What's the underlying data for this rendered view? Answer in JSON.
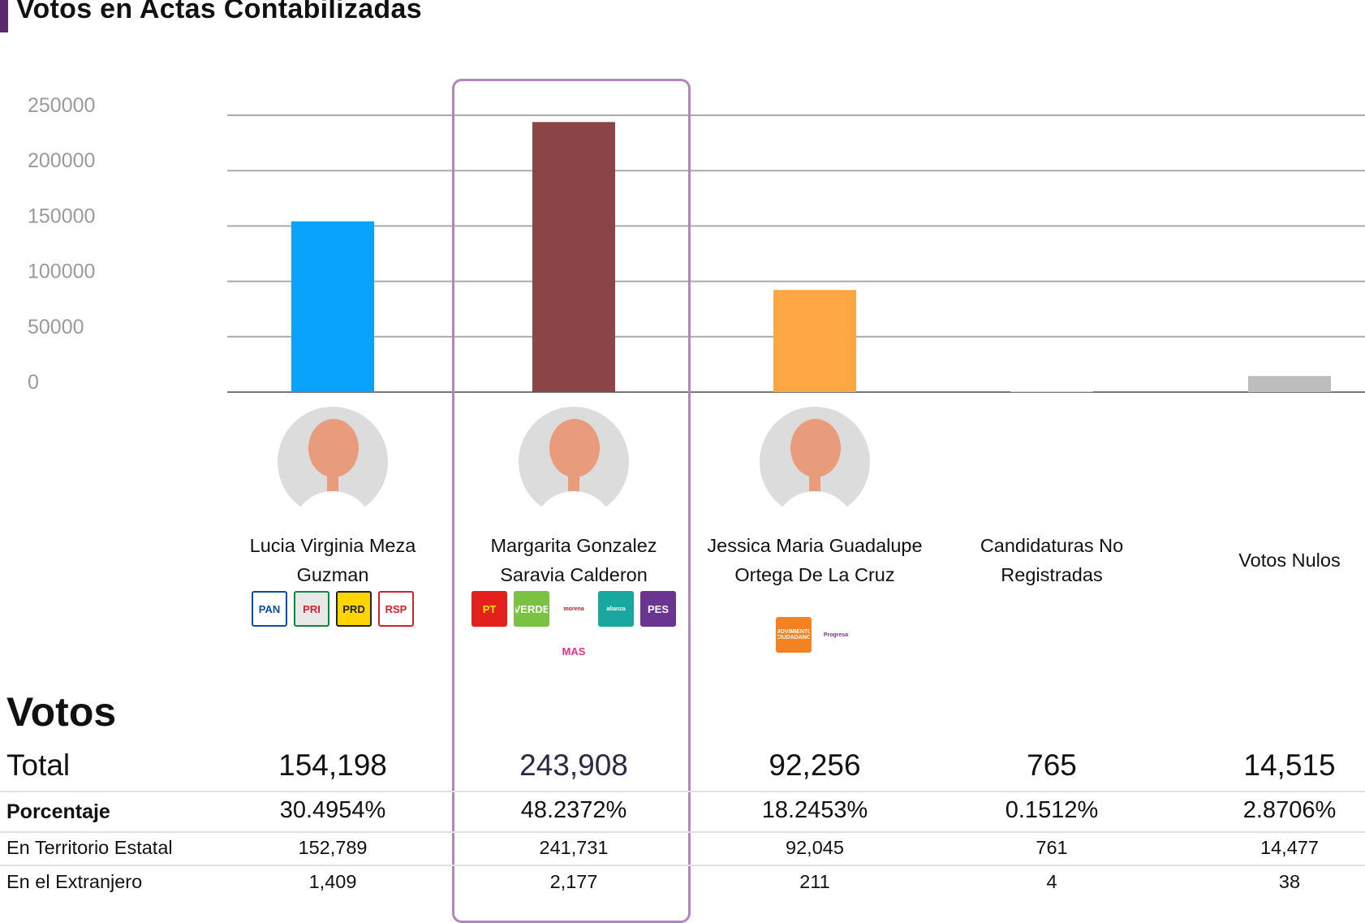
{
  "title": "Votos en Actas Contabilizadas",
  "colors": {
    "accent": "#5b2a6e",
    "highlight": "#b085c0"
  },
  "chart_data": {
    "type": "bar",
    "title": "Votos en Actas Contabilizadas",
    "categories": [
      "Lucia Virginia Meza Guzman",
      "Margarita Gonzalez Saravia Calderon",
      "Jessica Maria Guadalupe Ortega De La Cruz",
      "Candidaturas No Registradas",
      "Votos Nulos"
    ],
    "values": [
      154198,
      243908,
      92256,
      765,
      14515
    ],
    "colors": [
      "#0aa3fb",
      "#8b4547",
      "#ffa645",
      "#d0d0d0",
      "#bdbdbd"
    ],
    "ylim": [
      0,
      250000
    ],
    "yticks": [
      "0",
      "50000",
      "100000",
      "150000",
      "200000",
      "250000"
    ],
    "grid": true,
    "highlighted": 1
  },
  "candidates": [
    {
      "name_lines": [
        "Lucia Virginia Meza",
        "Guzman"
      ],
      "avatar": true,
      "logos": [
        {
          "label": "PAN",
          "bg": "#fff",
          "fg": "#0b4ea2",
          "border": "#0b4ea2"
        },
        {
          "label": "PRI",
          "bg": "#e8e8e8",
          "fg": "#d6202a",
          "border": "#0a8a3a"
        },
        {
          "label": "PRD",
          "bg": "#ffd500",
          "fg": "#222",
          "border": "#222"
        },
        {
          "label": "RSP",
          "bg": "#fff",
          "fg": "#d6202a",
          "border": "#d6202a"
        }
      ],
      "total": "154,198",
      "pct": "30.4954%",
      "terr": "152,789",
      "ext": "1,409"
    },
    {
      "name_lines": [
        "Margarita Gonzalez",
        "Saravia Calderon"
      ],
      "avatar": true,
      "logos": [
        {
          "label": "PT",
          "bg": "#e3201b",
          "fg": "#ffe000",
          "border": "#e3201b"
        },
        {
          "label": "VERDE",
          "bg": "#7cc242",
          "fg": "#fff",
          "border": "#7cc242"
        },
        {
          "label": "morena",
          "bg": "#fff",
          "fg": "#a5252e",
          "border": "#fff"
        },
        {
          "label": "alianza",
          "bg": "#19a8a0",
          "fg": "#fff",
          "border": "#19a8a0"
        },
        {
          "label": "PES",
          "bg": "#6a3590",
          "fg": "#fff",
          "border": "#6a3590"
        },
        {
          "label": "MAS",
          "bg": "#fff",
          "fg": "#e6308a",
          "border": "#fff"
        }
      ],
      "total": "243,908",
      "pct": "48.2372%",
      "terr": "241,731",
      "ext": "2,177"
    },
    {
      "name_lines": [
        "Jessica Maria Guadalupe",
        "Ortega De La Cruz"
      ],
      "avatar": true,
      "logos": [
        {
          "label": "MOVIMIENTO CIUDADANO",
          "bg": "#f58220",
          "fg": "#fff",
          "border": "#f58220"
        },
        {
          "label": "Progresa",
          "bg": "#fff",
          "fg": "#7b2f8e",
          "border": "#fff"
        }
      ],
      "total": "92,256",
      "pct": "18.2453%",
      "terr": "92,045",
      "ext": "211"
    },
    {
      "name_lines": [
        "Candidaturas No",
        "Registradas"
      ],
      "avatar": false,
      "logos": [],
      "total": "765",
      "pct": "0.1512%",
      "terr": "761",
      "ext": "4"
    },
    {
      "name_lines": [
        "Votos Nulos"
      ],
      "avatar": false,
      "logos": [],
      "total": "14,515",
      "pct": "2.8706%",
      "terr": "14,477",
      "ext": "38"
    }
  ],
  "table": {
    "heading": "Votos",
    "labels": {
      "total": "Total",
      "pct": "Porcentaje",
      "terr": "En Territorio Estatal",
      "ext": "En el Extranjero"
    }
  }
}
